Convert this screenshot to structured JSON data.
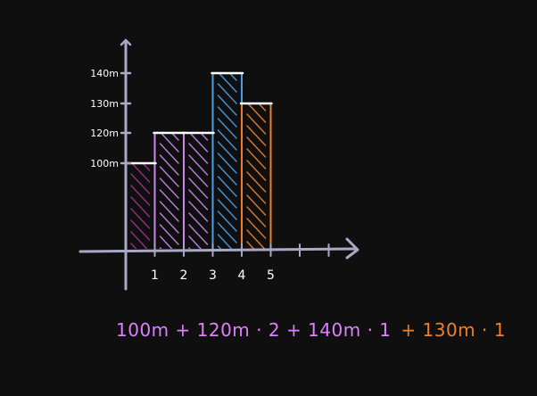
{
  "chart_data": {
    "type": "bar",
    "categories": [
      "1",
      "2",
      "3",
      "4",
      "5"
    ],
    "x_ticks": [
      "1",
      "2",
      "3",
      "4",
      "5"
    ],
    "y_ticks": [
      {
        "value": 100,
        "label": "100m"
      },
      {
        "value": 120,
        "label": "120m"
      },
      {
        "value": 130,
        "label": "130m"
      },
      {
        "value": 140,
        "label": "140m"
      }
    ],
    "bars": [
      {
        "x_start": 0,
        "x_end": 1,
        "value": 100,
        "color": "#a0308f",
        "hatch": "down"
      },
      {
        "x_start": 1,
        "x_end": 2,
        "value": 120,
        "color": "#c987ee",
        "hatch": "down"
      },
      {
        "x_start": 2,
        "x_end": 3,
        "value": 120,
        "color": "#c987ee",
        "hatch": "down"
      },
      {
        "x_start": 3,
        "x_end": 4,
        "value": 140,
        "color": "#4a9fe6",
        "hatch": "up"
      },
      {
        "x_start": 4,
        "x_end": 5,
        "value": 130,
        "color": "#ef7f2a",
        "hatch": "down"
      }
    ],
    "xlim": [
      0,
      8
    ],
    "ylim": [
      0,
      150
    ],
    "title": "",
    "xlabel": "",
    "ylabel": ""
  },
  "formula": {
    "part1": "100m + 120m · 2 + 140m · 1",
    "part2": "+ 130m · 1"
  },
  "colors": {
    "background": "#0f0f0f",
    "axis": "#a9a9c6",
    "cap": "#ffffff",
    "formula_pink": "#e07fff",
    "formula_orange": "#ef7f2a"
  }
}
